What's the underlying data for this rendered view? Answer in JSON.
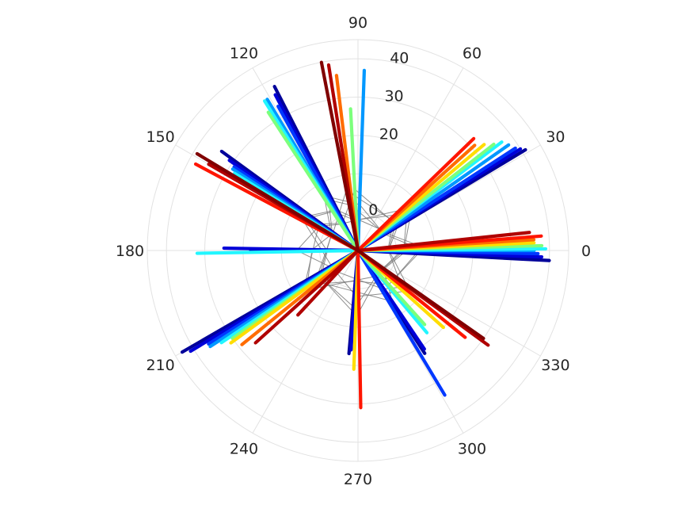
{
  "chart_data": {
    "type": "polar",
    "title": "",
    "theta_ticks": [
      "0",
      "30",
      "60",
      "90",
      "120",
      "150",
      "180",
      "210",
      "240",
      "270",
      "300",
      "330"
    ],
    "r_ticks": [
      "0",
      "20",
      "30",
      "40"
    ],
    "r_range": [
      -10,
      45
    ],
    "grid": true,
    "colormap": "jet",
    "series": [
      {
        "color": "#00009a",
        "values": [
          {
            "theta": 357,
            "r": 40
          },
          {
            "theta": 31,
            "r": 41
          },
          {
            "theta": 117,
            "r": 38
          },
          {
            "theta": 144,
            "r": 34
          },
          {
            "theta": 180,
            "r": 18
          },
          {
            "theta": 210,
            "r": 43
          },
          {
            "theta": 265,
            "r": 17
          },
          {
            "theta": 303,
            "r": 22
          }
        ]
      },
      {
        "color": "#0000d8",
        "values": [
          {
            "theta": 358,
            "r": 38
          },
          {
            "theta": 32,
            "r": 40
          },
          {
            "theta": 118,
            "r": 36
          },
          {
            "theta": 145,
            "r": 31
          },
          {
            "theta": 179,
            "r": 25
          },
          {
            "theta": 211,
            "r": 41
          },
          {
            "theta": 266,
            "r": 16
          },
          {
            "theta": 304,
            "r": 21
          }
        ]
      },
      {
        "color": "#0038ff",
        "values": [
          {
            "theta": 359,
            "r": 37
          },
          {
            "theta": 33,
            "r": 39
          },
          {
            "theta": 119,
            "r": 33
          },
          {
            "theta": 146,
            "r": 29
          },
          {
            "theta": 212,
            "r": 36
          },
          {
            "theta": 301,
            "r": 34
          }
        ]
      },
      {
        "color": "#0098ff",
        "values": [
          {
            "theta": 0,
            "r": 36
          },
          {
            "theta": 35,
            "r": 38
          },
          {
            "theta": 121,
            "r": 36
          },
          {
            "theta": 147,
            "r": 29
          },
          {
            "theta": 213,
            "r": 36
          },
          {
            "theta": 88,
            "r": 37
          }
        ]
      },
      {
        "color": "#22f6ff",
        "values": [
          {
            "theta": 0.5,
            "r": 39
          },
          {
            "theta": 37,
            "r": 37
          },
          {
            "theta": 122,
            "r": 36
          },
          {
            "theta": 148,
            "r": 28
          },
          {
            "theta": 181,
            "r": 32
          },
          {
            "theta": 214,
            "r": 33
          },
          {
            "theta": 310,
            "r": 18
          }
        ]
      },
      {
        "color": "#7cff7c",
        "values": [
          {
            "theta": 1.5,
            "r": 38
          },
          {
            "theta": 38,
            "r": 35
          },
          {
            "theta": 123,
            "r": 33
          },
          {
            "theta": 149,
            "r": 27
          },
          {
            "theta": 215,
            "r": 30
          },
          {
            "theta": 93,
            "r": 27
          },
          {
            "theta": 312,
            "r": 16
          }
        ]
      },
      {
        "color": "#ffdd00",
        "values": [
          {
            "theta": 2.5,
            "r": 36
          },
          {
            "theta": 40,
            "r": 33
          },
          {
            "theta": 216,
            "r": 31
          },
          {
            "theta": 268,
            "r": 21
          },
          {
            "theta": 318,
            "r": 20
          }
        ]
      },
      {
        "color": "#ff6c00",
        "values": [
          {
            "theta": 3.5,
            "r": 36
          },
          {
            "theta": 42,
            "r": 31
          },
          {
            "theta": 97,
            "r": 36
          },
          {
            "theta": 152,
            "r": 25
          },
          {
            "theta": 219,
            "r": 29
          },
          {
            "theta": 321,
            "r": 23
          }
        ]
      },
      {
        "color": "#ff1500",
        "values": [
          {
            "theta": 4.5,
            "r": 38
          },
          {
            "theta": 44,
            "r": 32
          },
          {
            "theta": 152,
            "r": 38
          },
          {
            "theta": 271,
            "r": 31
          },
          {
            "theta": 321,
            "r": 26
          }
        ]
      },
      {
        "color": "#b00000",
        "values": [
          {
            "theta": 6,
            "r": 35
          },
          {
            "theta": 99,
            "r": 39
          },
          {
            "theta": 150,
            "r": 35
          },
          {
            "theta": 222,
            "r": 26
          },
          {
            "theta": 324,
            "r": 32
          },
          {
            "theta": 227,
            "r": 13
          }
        ]
      },
      {
        "color": "#800000",
        "values": [
          {
            "theta": 101,
            "r": 40
          },
          {
            "theta": 149,
            "r": 39
          },
          {
            "theta": 325,
            "r": 30
          }
        ]
      }
    ]
  }
}
